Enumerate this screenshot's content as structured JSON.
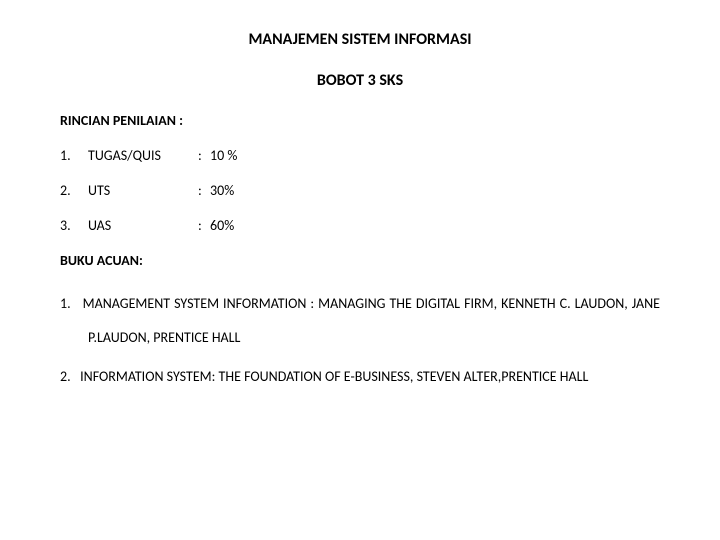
{
  "title": "MANAJEMEN SISTEM INFORMASI",
  "subtitle": "BOBOT 3 SKS",
  "grading": {
    "heading": "RINCIAN PENILAIAN :",
    "items": [
      {
        "num": "1.",
        "label": "TUGAS/QUIS",
        "value": "10 %"
      },
      {
        "num": "2.",
        "label": "UTS",
        "value": "30%"
      },
      {
        "num": "3.",
        "label": "UAS",
        "value": "60%"
      }
    ]
  },
  "references": {
    "heading": "BUKU ACUAN:",
    "items": [
      {
        "num": "1.",
        "text": "MANAGEMENT SYSTEM INFORMATION : MANAGING THE DIGITAL FIRM, KENNETH C. LAUDON, JANE P.LAUDON, PRENTICE HALL"
      },
      {
        "num": "2.",
        "text": "INFORMATION SYSTEM: THE FOUNDATION OF E-BUSINESS, STEVEN ALTER,PRENTICE HALL"
      }
    ]
  },
  "colors": {
    "background": "#ffffff",
    "text": "#000000"
  },
  "typography": {
    "title_fontsize": 16,
    "body_fontsize": 14,
    "font_family": "Calibri"
  }
}
